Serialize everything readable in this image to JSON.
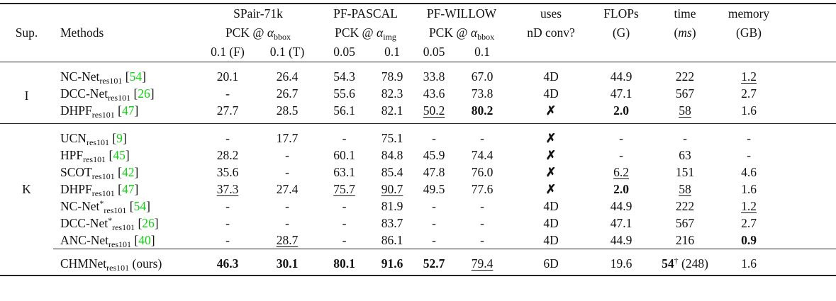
{
  "header": {
    "sup": "Sup.",
    "methods": "Methods",
    "spair": {
      "name": "SPair-71k",
      "metric": "PCK @",
      "alpha": "α",
      "alpha_sub": "bbox",
      "thr": [
        "0.1 (F)",
        "0.1 (T)"
      ]
    },
    "pascal": {
      "name": "PF-PASCAL",
      "metric": "PCK @",
      "alpha": "α",
      "alpha_sub": "img",
      "thr": [
        "0.05",
        "0.1"
      ]
    },
    "willow": {
      "name": "PF-WILLOW",
      "metric": "PCK @",
      "alpha": "α",
      "alpha_sub": "bbox",
      "thr": [
        "0.05",
        "0.1"
      ]
    },
    "nd": [
      "uses",
      "nD conv?"
    ],
    "flops": [
      "FLOPs",
      "(G)"
    ],
    "time": [
      "time",
      "ms"
    ],
    "memory": [
      "memory",
      "(GB)"
    ]
  },
  "colors": {
    "reference": "#10d010"
  },
  "groups": [
    {
      "sup": "I",
      "rows": [
        {
          "name": "NC-Net",
          "sub": "res101",
          "star": "",
          "ref": "54",
          "cells": [
            [
              "20.1",
              ""
            ],
            [
              "26.4",
              ""
            ],
            [
              "54.3",
              ""
            ],
            [
              "78.9",
              ""
            ],
            [
              "33.8",
              ""
            ],
            [
              "67.0",
              ""
            ],
            [
              "4D",
              ""
            ],
            [
              "44.9",
              ""
            ],
            [
              "222",
              ""
            ],
            [
              "1.2",
              "u"
            ]
          ]
        },
        {
          "name": "DCC-Net",
          "sub": "res101",
          "star": "",
          "ref": "26",
          "cells": [
            [
              "-",
              ""
            ],
            [
              "26.7",
              ""
            ],
            [
              "55.6",
              ""
            ],
            [
              "82.3",
              ""
            ],
            [
              "43.6",
              ""
            ],
            [
              "73.8",
              ""
            ],
            [
              "4D",
              ""
            ],
            [
              "47.1",
              ""
            ],
            [
              "567",
              ""
            ],
            [
              "2.7",
              ""
            ]
          ]
        },
        {
          "name": "DHPF",
          "sub": "res101",
          "star": "",
          "ref": "47",
          "cells": [
            [
              "27.7",
              ""
            ],
            [
              "28.5",
              ""
            ],
            [
              "56.1",
              ""
            ],
            [
              "82.1",
              ""
            ],
            [
              "50.2",
              "u"
            ],
            [
              "80.2",
              "b"
            ],
            [
              "✗",
              "x"
            ],
            [
              "2.0",
              "b"
            ],
            [
              "58",
              "u"
            ],
            [
              "1.6",
              ""
            ]
          ]
        }
      ]
    },
    {
      "sup": "K",
      "rows": [
        {
          "name": "UCN",
          "sub": "res101",
          "star": "",
          "ref": "9",
          "cells": [
            [
              "-",
              ""
            ],
            [
              "17.7",
              ""
            ],
            [
              "-",
              ""
            ],
            [
              "75.1",
              ""
            ],
            [
              "-",
              ""
            ],
            [
              "-",
              ""
            ],
            [
              "✗",
              "x"
            ],
            [
              "-",
              ""
            ],
            [
              "-",
              ""
            ],
            [
              "-",
              ""
            ]
          ]
        },
        {
          "name": "HPF",
          "sub": "res101",
          "star": "",
          "ref": "45",
          "cells": [
            [
              "28.2",
              ""
            ],
            [
              "-",
              ""
            ],
            [
              "60.1",
              ""
            ],
            [
              "84.8",
              ""
            ],
            [
              "45.9",
              ""
            ],
            [
              "74.4",
              ""
            ],
            [
              "✗",
              "x"
            ],
            [
              "-",
              ""
            ],
            [
              "63",
              ""
            ],
            [
              "-",
              ""
            ]
          ]
        },
        {
          "name": "SCOT",
          "sub": "res101",
          "star": "",
          "ref": "42",
          "cells": [
            [
              "35.6",
              ""
            ],
            [
              "-",
              ""
            ],
            [
              "63.1",
              ""
            ],
            [
              "85.4",
              ""
            ],
            [
              "47.8",
              ""
            ],
            [
              "76.0",
              ""
            ],
            [
              "✗",
              "x"
            ],
            [
              "6.2",
              "u"
            ],
            [
              "151",
              ""
            ],
            [
              "4.6",
              ""
            ]
          ]
        },
        {
          "name": "DHPF",
          "sub": "res101",
          "star": "",
          "ref": "47",
          "cells": [
            [
              "37.3",
              "u"
            ],
            [
              "27.4",
              ""
            ],
            [
              "75.7",
              "u"
            ],
            [
              "90.7",
              "u"
            ],
            [
              "49.5",
              ""
            ],
            [
              "77.6",
              ""
            ],
            [
              "✗",
              "x"
            ],
            [
              "2.0",
              "b"
            ],
            [
              "58",
              "u"
            ],
            [
              "1.6",
              ""
            ]
          ]
        },
        {
          "name": "NC-Net",
          "sub": "res101",
          "star": "*",
          "ref": "54",
          "cells": [
            [
              "-",
              ""
            ],
            [
              "-",
              ""
            ],
            [
              "-",
              ""
            ],
            [
              "81.9",
              ""
            ],
            [
              "-",
              ""
            ],
            [
              "-",
              ""
            ],
            [
              "4D",
              ""
            ],
            [
              "44.9",
              ""
            ],
            [
              "222",
              ""
            ],
            [
              "1.2",
              "u"
            ]
          ]
        },
        {
          "name": "DCC-Net",
          "sub": "res101",
          "star": "*",
          "ref": "26",
          "cells": [
            [
              "-",
              ""
            ],
            [
              "-",
              ""
            ],
            [
              "-",
              ""
            ],
            [
              "83.7",
              ""
            ],
            [
              "-",
              ""
            ],
            [
              "-",
              ""
            ],
            [
              "4D",
              ""
            ],
            [
              "47.1",
              ""
            ],
            [
              "567",
              ""
            ],
            [
              "2.7",
              ""
            ]
          ]
        },
        {
          "name": "ANC-Net",
          "sub": "res101",
          "star": "",
          "ref": "40",
          "cells": [
            [
              "-",
              ""
            ],
            [
              "28.7",
              "u"
            ],
            [
              "-",
              ""
            ],
            [
              "86.1",
              ""
            ],
            [
              "-",
              ""
            ],
            [
              "-",
              ""
            ],
            [
              "4D",
              ""
            ],
            [
              "44.9",
              ""
            ],
            [
              "216",
              ""
            ],
            [
              "0.9",
              "b"
            ]
          ]
        }
      ]
    }
  ],
  "ours": {
    "name": "CHMNet",
    "sub": "res101",
    "suffix": "(ours)",
    "cells": [
      [
        "46.3",
        "b"
      ],
      [
        "30.1",
        "b"
      ],
      [
        "80.1",
        "b"
      ],
      [
        "91.6",
        "b"
      ],
      [
        "52.7",
        "b"
      ],
      [
        "79.4",
        "u"
      ],
      [
        "6D",
        ""
      ],
      [
        "19.6",
        ""
      ]
    ],
    "time": "54",
    "time_mark": "†",
    "time_extra": "(248)",
    "memory": "1.6"
  }
}
